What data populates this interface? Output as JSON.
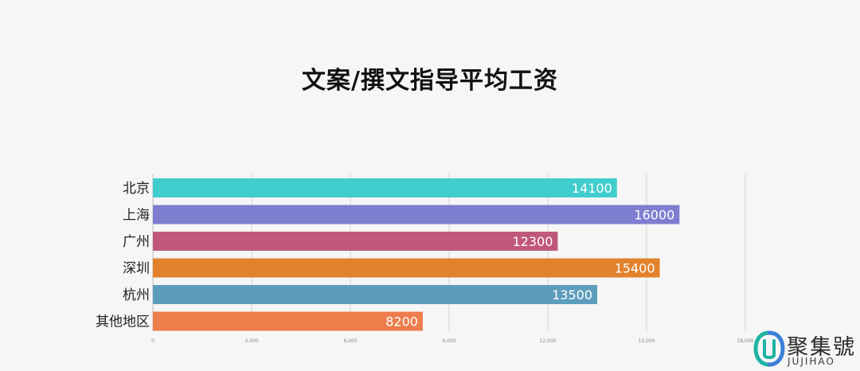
{
  "chart_data": {
    "type": "bar",
    "orientation": "horizontal",
    "title": "文案/撰文指导平均工资",
    "categories": [
      "北京",
      "上海",
      "广州",
      "深圳",
      "杭州",
      "其他地区"
    ],
    "values": [
      14100,
      16000,
      12300,
      15400,
      13500,
      8200
    ],
    "value_labels": [
      "14100",
      "16000",
      "12300",
      "15400",
      "13500",
      "8200"
    ],
    "colors": [
      "#41cdcd",
      "#7e7ed1",
      "#c0587c",
      "#e2822c",
      "#5d9dbc",
      "#ee7d4c"
    ],
    "x_ticks": [
      0,
      3000,
      6000,
      9000,
      12000,
      15000,
      18000
    ],
    "x_tick_labels": [
      "0",
      "3,000",
      "6,000",
      "9,000",
      "12,000",
      "15,000",
      "18,000"
    ],
    "xlim": [
      0,
      18000
    ],
    "grid": true,
    "xlabel": "",
    "ylabel": ""
  },
  "watermark": {
    "text_cn": "聚集號",
    "text_en": "JUJIHAO",
    "colors": [
      "#1fb3a3",
      "#3b7fd6"
    ]
  }
}
